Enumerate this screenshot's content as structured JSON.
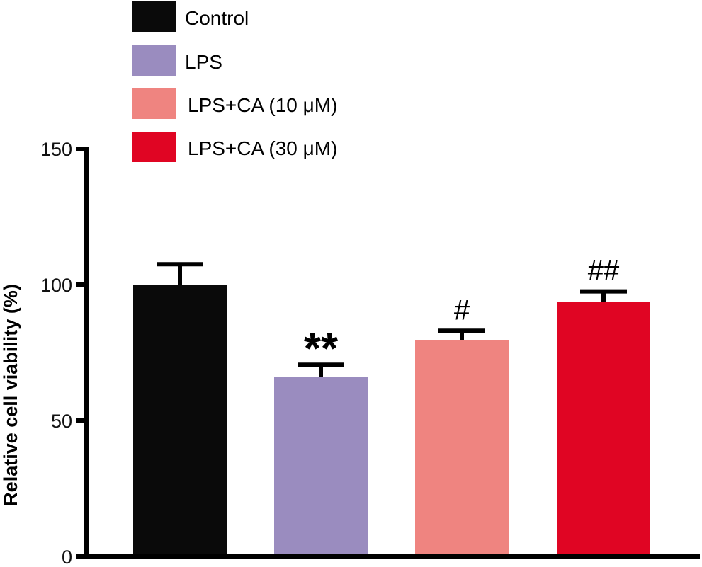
{
  "chart_data": {
    "type": "bar",
    "title": "",
    "xlabel": "",
    "ylabel": "Relative cell viability (%)",
    "ylim": [
      0,
      150
    ],
    "yticks": [
      0,
      50,
      100,
      150
    ],
    "ytick_labels": [
      "0",
      "50",
      "100",
      "150"
    ],
    "grid": false,
    "legend_position": "top",
    "categories": [
      "Control",
      "LPS",
      "LPS+CA (10 μM)",
      "LPS+CA (30 μM)"
    ],
    "values": [
      100,
      66,
      79.5,
      93.5
    ],
    "errors": [
      7.5,
      4.5,
      3.5,
      4
    ],
    "colors": [
      "#0a0a0a",
      "#9a8cbf",
      "#ef8480",
      "#e00523"
    ],
    "annotations": [
      "",
      "**",
      "#",
      "##"
    ],
    "legend": [
      {
        "label": "Control",
        "color": "#0a0a0a"
      },
      {
        "label": "LPS",
        "color": "#9a8cbf"
      },
      {
        "label": "LPS+CA (10 μM)",
        "color": "#ef8480"
      },
      {
        "label": "LPS+CA (30 μM)",
        "color": "#e00523"
      }
    ]
  }
}
